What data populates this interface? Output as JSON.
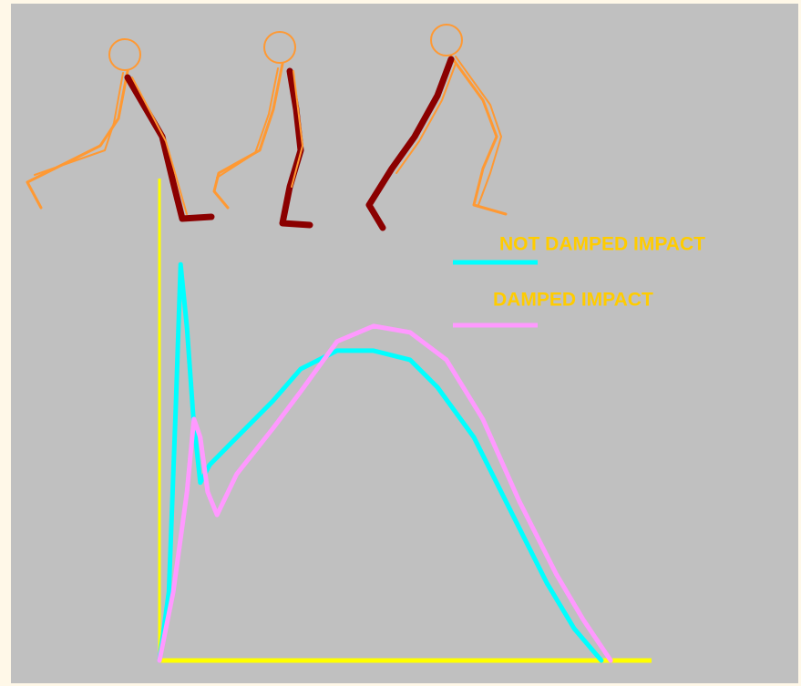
{
  "chart_data": {
    "type": "line",
    "xlim": [
      0,
      100
    ],
    "ylim": [
      0,
      100
    ],
    "axis_color": "#ffff00",
    "label_color": "#ffcc00",
    "series": [
      {
        "name": "NOT DAMPED IMPACT",
        "color": "#00ffff",
        "x": [
          0,
          1.9,
          3.3,
          4.3,
          5.6,
          6.9,
          8.3,
          10.2,
          15.7,
          23.1,
          28.7,
          36.1,
          43.5,
          50.9,
          56.5,
          63.9,
          71.3,
          78.7,
          84.3,
          89.8
        ],
        "values": [
          0,
          14.2,
          52.0,
          82.2,
          69.0,
          50.1,
          36.9,
          40.6,
          46.3,
          53.9,
          60.5,
          64.3,
          64.3,
          62.4,
          56.7,
          46.3,
          31.2,
          16.1,
          6.6,
          0
        ]
      },
      {
        "name": "DAMPED IMPACT",
        "color": "#ff99ff",
        "x": [
          0,
          2.8,
          5.6,
          7.0,
          8.3,
          9.8,
          11.7,
          15.7,
          23.1,
          28.7,
          36.1,
          43.5,
          50.9,
          58.3,
          65.7,
          73.1,
          80.6,
          86.1,
          91.7
        ],
        "values": [
          0,
          14.2,
          35.0,
          50.1,
          46.3,
          35.0,
          30.2,
          38.7,
          48.2,
          55.8,
          66.2,
          69.4,
          68.1,
          62.4,
          50.1,
          33.1,
          18.0,
          8.5,
          0
        ]
      }
    ]
  }
}
